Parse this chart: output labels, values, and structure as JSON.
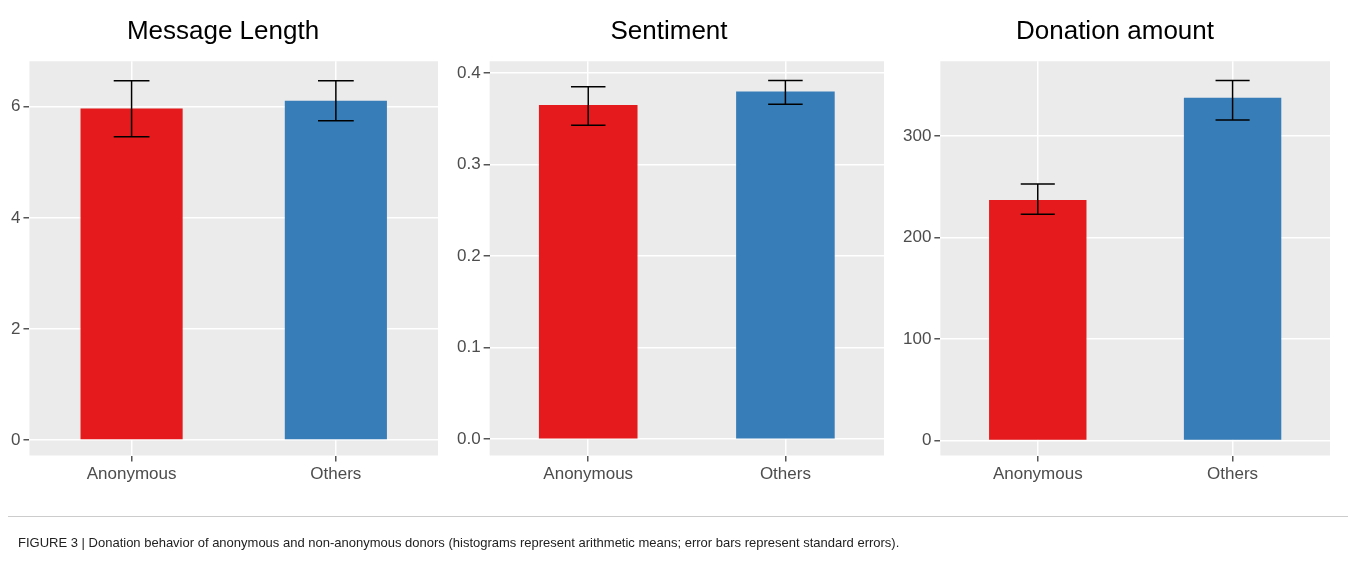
{
  "chart_data": [
    {
      "type": "bar",
      "title": "Message Length",
      "categories": [
        "Anonymous",
        "Others"
      ],
      "colors": [
        "#e41a1c",
        "#377eb8"
      ],
      "values": [
        5.97,
        6.11
      ],
      "errors": [
        [
          5.46,
          6.47
        ],
        [
          5.75,
          6.47
        ]
      ],
      "ylim": [
        -0.28,
        6.82
      ],
      "yticks": [
        0,
        2,
        4,
        6
      ],
      "grid": true,
      "annotations": [
        "FIGURE 3 | Donation behavior of anonymous and non-anonymous donors (histograms represent arithmetic means; error bars represent standard errors)."
      ]
    },
    {
      "type": "bar",
      "title": "Sentiment",
      "categories": [
        "Anonymous",
        "Others"
      ],
      "colors": [
        "#e41a1c",
        "#377eb8"
      ],
      "values": [
        0.365,
        0.38
      ],
      "errors": [
        [
          0.343,
          0.385
        ],
        [
          0.366,
          0.392
        ]
      ],
      "ylim": [
        -0.018,
        0.413
      ],
      "yticks": [
        {
          "value": 0,
          "label": "0.0"
        },
        0.1,
        0.2,
        0.3,
        0.4
      ],
      "grid": true
    },
    {
      "type": "bar",
      "title": "Donation amount",
      "categories": [
        "Anonymous",
        "Others"
      ],
      "colors": [
        "#e41a1c",
        "#377eb8"
      ],
      "values": [
        237,
        338
      ],
      "errors": [
        [
          223,
          253
        ],
        [
          316,
          355
        ]
      ],
      "ylim": [
        -15,
        374
      ],
      "yticks": [
        0,
        100,
        200,
        300
      ],
      "grid": true
    }
  ]
}
